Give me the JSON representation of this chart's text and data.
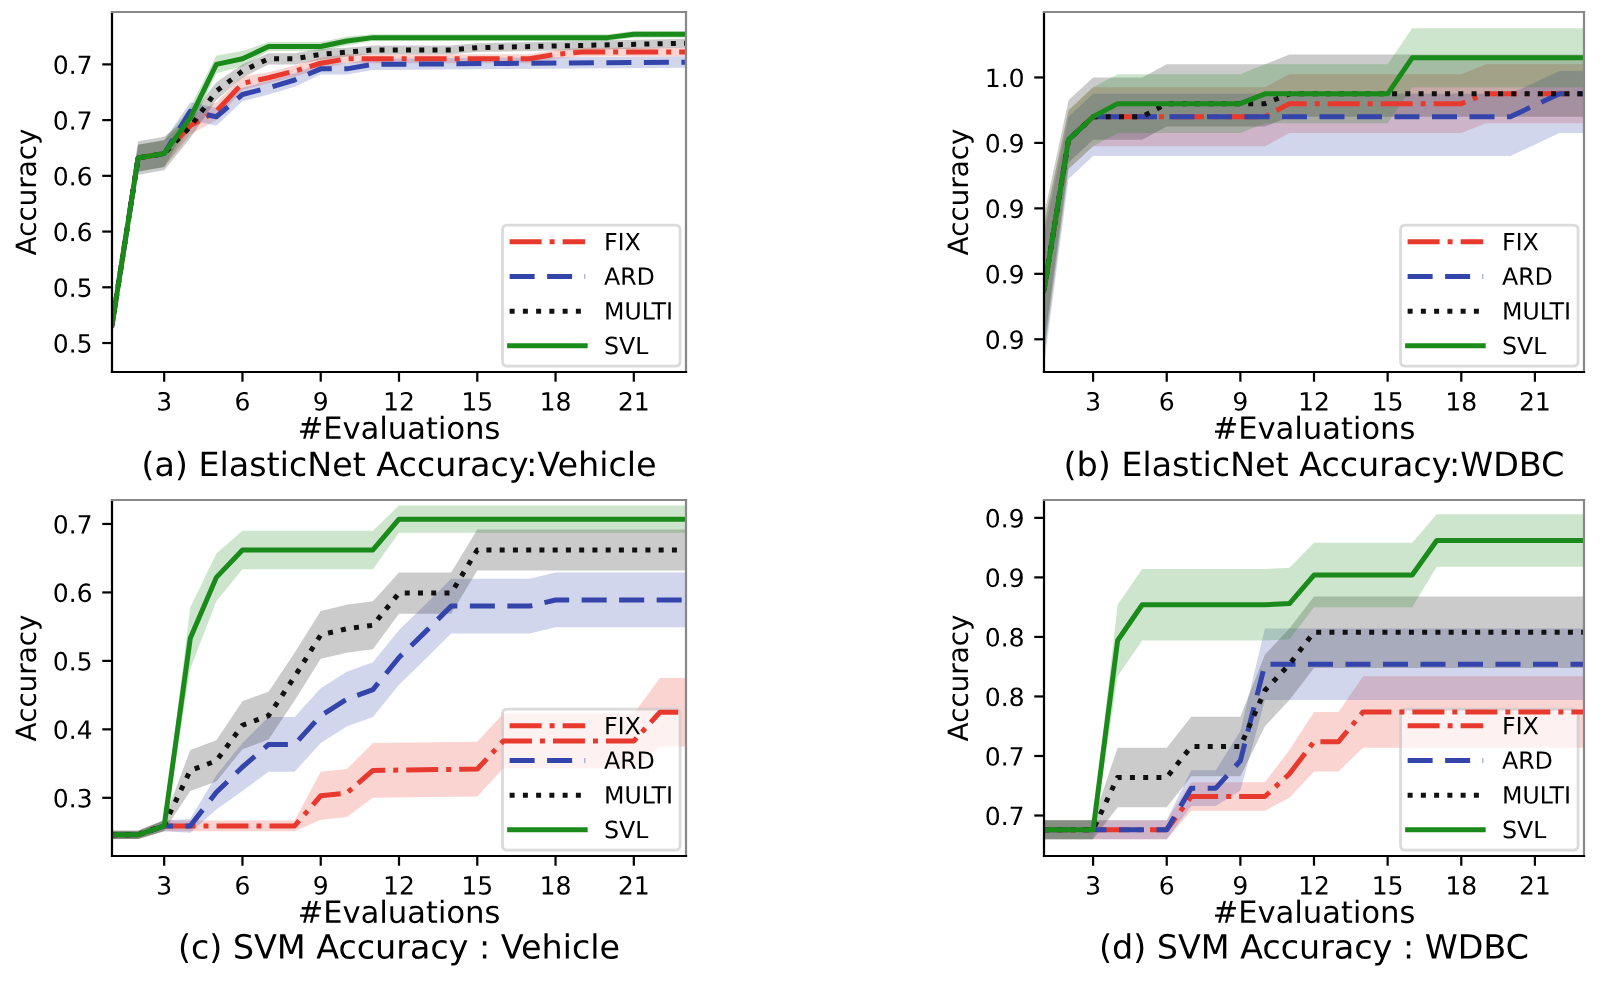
{
  "chart_data": [
    {
      "type": "line",
      "title": "(a) ElasticNet Accuracy:Vehicle",
      "xlabel": "#Evaluations",
      "ylabel": "Accuracy",
      "xlim": [
        1,
        23
      ],
      "xticks": [
        3,
        6,
        9,
        12,
        15,
        18,
        21
      ],
      "ylim": [
        0.424,
        0.747
      ],
      "yticks": [
        {
          "value": 0.45,
          "label": "0.5"
        },
        {
          "value": 0.5,
          "label": "0.5"
        },
        {
          "value": 0.55,
          "label": "0.6"
        },
        {
          "value": 0.6,
          "label": "0.6"
        },
        {
          "value": 0.65,
          "label": "0.7"
        },
        {
          "value": 0.7,
          "label": "0.7"
        }
      ],
      "legend": "lower right",
      "grid": false,
      "series": [
        {
          "name": "FIX",
          "color": "#e8392f",
          "line_style": "dashdot",
          "x": [
            1,
            2,
            3,
            4,
            5,
            6,
            7,
            8,
            9,
            10,
            17,
            18,
            19,
            23
          ],
          "values": [
            0.466,
            0.616,
            0.62,
            0.645,
            0.658,
            0.683,
            0.688,
            0.694,
            0.701,
            0.705,
            0.705,
            0.709,
            0.711,
            0.711
          ],
          "lower": [
            0.456,
            0.604,
            0.608,
            0.637,
            0.65,
            0.677,
            0.683,
            0.689,
            0.696,
            0.701,
            0.701,
            0.705,
            0.707,
            0.707
          ],
          "upper": [
            0.476,
            0.628,
            0.632,
            0.653,
            0.666,
            0.689,
            0.693,
            0.699,
            0.706,
            0.709,
            0.709,
            0.713,
            0.715,
            0.715
          ]
        },
        {
          "name": "ARD",
          "color": "#3344aa",
          "line_style": "dashed",
          "x": [
            1,
            2,
            3,
            4,
            5,
            6,
            7,
            8,
            9,
            10,
            11,
            23
          ],
          "values": [
            0.466,
            0.616,
            0.62,
            0.658,
            0.653,
            0.673,
            0.679,
            0.686,
            0.696,
            0.696,
            0.7,
            0.702
          ],
          "lower": [
            0.456,
            0.604,
            0.608,
            0.65,
            0.645,
            0.667,
            0.673,
            0.68,
            0.691,
            0.691,
            0.695,
            0.697
          ],
          "upper": [
            0.476,
            0.628,
            0.632,
            0.666,
            0.661,
            0.679,
            0.685,
            0.692,
            0.701,
            0.701,
            0.705,
            0.707
          ]
        },
        {
          "name": "MULTI",
          "color": "#111111",
          "line_style": "dotted",
          "x": [
            1,
            2,
            3,
            4,
            5,
            6,
            7,
            8,
            9,
            10,
            11,
            14,
            15,
            23
          ],
          "values": [
            0.466,
            0.616,
            0.62,
            0.644,
            0.676,
            0.694,
            0.705,
            0.705,
            0.709,
            0.711,
            0.713,
            0.713,
            0.715,
            0.719
          ],
          "lower": [
            0.456,
            0.601,
            0.605,
            0.634,
            0.668,
            0.688,
            0.7,
            0.7,
            0.704,
            0.707,
            0.709,
            0.709,
            0.711,
            0.715
          ],
          "upper": [
            0.476,
            0.631,
            0.635,
            0.654,
            0.684,
            0.7,
            0.71,
            0.71,
            0.714,
            0.715,
            0.717,
            0.717,
            0.719,
            0.723
          ]
        },
        {
          "name": "SVL",
          "color": "#1a8a1a",
          "line_style": "solid",
          "x": [
            1,
            2,
            3,
            4,
            5,
            6,
            7,
            9,
            10,
            11,
            20,
            21,
            23
          ],
          "values": [
            0.466,
            0.616,
            0.62,
            0.652,
            0.7,
            0.705,
            0.716,
            0.716,
            0.721,
            0.724,
            0.724,
            0.727,
            0.727
          ],
          "lower": [
            0.456,
            0.604,
            0.608,
            0.642,
            0.692,
            0.698,
            0.712,
            0.712,
            0.717,
            0.721,
            0.721,
            0.724,
            0.724
          ],
          "upper": [
            0.476,
            0.628,
            0.632,
            0.662,
            0.708,
            0.712,
            0.72,
            0.72,
            0.725,
            0.727,
            0.727,
            0.73,
            0.73
          ]
        }
      ]
    },
    {
      "type": "line",
      "title": "(b) ElasticNet Accuracy:WDBC",
      "xlabel": "#Evaluations",
      "ylabel": "Accuracy",
      "xlim": [
        1,
        23
      ],
      "xticks": [
        3,
        6,
        9,
        12,
        15,
        18,
        21
      ],
      "ylim": [
        0.87,
        0.98
      ],
      "yticks": [
        {
          "value": 0.88,
          "label": "0.9"
        },
        {
          "value": 0.9,
          "label": "0.9"
        },
        {
          "value": 0.92,
          "label": "0.9"
        },
        {
          "value": 0.94,
          "label": "0.9"
        },
        {
          "value": 0.96,
          "label": "1.0"
        }
      ],
      "legend": "lower right",
      "grid": false,
      "series": [
        {
          "name": "FIX",
          "color": "#e8392f",
          "line_style": "dashdot",
          "x": [
            1,
            2,
            3,
            10,
            11,
            18,
            19,
            23
          ],
          "values": [
            0.895,
            0.941,
            0.948,
            0.948,
            0.952,
            0.952,
            0.955,
            0.955
          ],
          "lower": [
            0.875,
            0.932,
            0.939,
            0.939,
            0.943,
            0.943,
            0.946,
            0.946
          ],
          "upper": [
            0.915,
            0.95,
            0.957,
            0.957,
            0.961,
            0.961,
            0.964,
            0.964
          ]
        },
        {
          "name": "ARD",
          "color": "#3344aa",
          "line_style": "dashed",
          "x": [
            1,
            2,
            3,
            20,
            22,
            23
          ],
          "values": [
            0.895,
            0.941,
            0.948,
            0.948,
            0.955,
            0.955
          ],
          "lower": [
            0.872,
            0.929,
            0.936,
            0.936,
            0.943,
            0.943
          ],
          "upper": [
            0.912,
            0.948,
            0.955,
            0.955,
            0.962,
            0.962
          ]
        },
        {
          "name": "MULTI",
          "color": "#111111",
          "line_style": "dotted",
          "x": [
            1,
            2,
            3,
            5,
            6,
            10,
            11,
            23
          ],
          "values": [
            0.895,
            0.941,
            0.948,
            0.948,
            0.952,
            0.952,
            0.955,
            0.955
          ],
          "lower": [
            0.878,
            0.934,
            0.941,
            0.941,
            0.945,
            0.945,
            0.948,
            0.948
          ],
          "upper": [
            0.918,
            0.953,
            0.96,
            0.96,
            0.964,
            0.964,
            0.967,
            0.967
          ]
        },
        {
          "name": "SVL",
          "color": "#1a8a1a",
          "line_style": "solid",
          "x": [
            1,
            2,
            3,
            4,
            9,
            10,
            15,
            16,
            23
          ],
          "values": [
            0.895,
            0.941,
            0.948,
            0.952,
            0.952,
            0.955,
            0.955,
            0.966,
            0.966
          ],
          "lower": [
            0.875,
            0.932,
            0.939,
            0.943,
            0.943,
            0.946,
            0.946,
            0.957,
            0.957
          ],
          "upper": [
            0.915,
            0.95,
            0.957,
            0.961,
            0.961,
            0.964,
            0.964,
            0.975,
            0.975
          ]
        }
      ]
    },
    {
      "type": "line",
      "title": "(c) SVM Accuracy : Vehicle",
      "xlabel": "#Evaluations",
      "ylabel": "Accuracy",
      "xlim": [
        1,
        23
      ],
      "xticks": [
        3,
        6,
        9,
        12,
        15,
        18,
        21
      ],
      "ylim": [
        0.215,
        0.735
      ],
      "yticks": [
        0.3,
        0.4,
        0.5,
        0.6,
        0.7
      ],
      "legend": "lower right",
      "grid": false,
      "series": [
        {
          "name": "FIX",
          "color": "#e8392f",
          "line_style": "dashdot",
          "x": [
            1,
            2,
            3,
            8,
            9,
            10,
            11,
            15,
            16,
            21,
            22,
            23
          ],
          "values": [
            0.246,
            0.246,
            0.259,
            0.259,
            0.303,
            0.307,
            0.34,
            0.342,
            0.383,
            0.383,
            0.425,
            0.425
          ],
          "lower": [
            0.24,
            0.24,
            0.251,
            0.251,
            0.268,
            0.272,
            0.3,
            0.302,
            0.343,
            0.343,
            0.375,
            0.375
          ],
          "upper": [
            0.252,
            0.252,
            0.267,
            0.267,
            0.338,
            0.342,
            0.38,
            0.382,
            0.423,
            0.423,
            0.475,
            0.475
          ]
        },
        {
          "name": "ARD",
          "color": "#3344aa",
          "line_style": "dashed",
          "x": [
            1,
            2,
            3,
            4,
            5,
            6,
            7,
            8,
            9,
            10,
            11,
            12,
            13,
            14,
            17,
            18,
            23
          ],
          "values": [
            0.246,
            0.246,
            0.259,
            0.259,
            0.308,
            0.345,
            0.378,
            0.378,
            0.42,
            0.444,
            0.458,
            0.505,
            0.542,
            0.58,
            0.58,
            0.589,
            0.589
          ],
          "lower": [
            0.24,
            0.24,
            0.251,
            0.249,
            0.283,
            0.31,
            0.338,
            0.338,
            0.38,
            0.404,
            0.418,
            0.465,
            0.502,
            0.54,
            0.54,
            0.549,
            0.549
          ],
          "upper": [
            0.252,
            0.252,
            0.267,
            0.269,
            0.333,
            0.38,
            0.418,
            0.418,
            0.46,
            0.484,
            0.498,
            0.545,
            0.582,
            0.62,
            0.62,
            0.629,
            0.629
          ]
        },
        {
          "name": "MULTI",
          "color": "#111111",
          "line_style": "dotted",
          "x": [
            1,
            2,
            3,
            4,
            5,
            6,
            7,
            8,
            9,
            10,
            11,
            12,
            14,
            15,
            23
          ],
          "values": [
            0.246,
            0.246,
            0.26,
            0.34,
            0.354,
            0.406,
            0.42,
            0.477,
            0.538,
            0.547,
            0.552,
            0.599,
            0.599,
            0.662,
            0.662
          ],
          "lower": [
            0.24,
            0.24,
            0.252,
            0.31,
            0.324,
            0.371,
            0.385,
            0.442,
            0.503,
            0.512,
            0.517,
            0.569,
            0.569,
            0.632,
            0.632
          ],
          "upper": [
            0.252,
            0.252,
            0.268,
            0.37,
            0.384,
            0.441,
            0.455,
            0.512,
            0.573,
            0.582,
            0.587,
            0.629,
            0.629,
            0.692,
            0.692
          ]
        },
        {
          "name": "SVL",
          "color": "#1a8a1a",
          "line_style": "solid",
          "x": [
            1,
            2,
            3,
            4,
            5,
            6,
            11,
            12,
            23
          ],
          "values": [
            0.246,
            0.246,
            0.259,
            0.533,
            0.622,
            0.662,
            0.662,
            0.707,
            0.707
          ],
          "lower": [
            0.24,
            0.24,
            0.251,
            0.488,
            0.587,
            0.634,
            0.634,
            0.687,
            0.687
          ],
          "upper": [
            0.252,
            0.252,
            0.267,
            0.578,
            0.657,
            0.69,
            0.69,
            0.727,
            0.727
          ]
        }
      ]
    },
    {
      "type": "line",
      "title": "(d) SVM Accuracy : WDBC",
      "xlabel": "#Evaluations",
      "ylabel": "Accuracy",
      "xlim": [
        1,
        23
      ],
      "xticks": [
        3,
        6,
        9,
        12,
        15,
        18,
        21
      ],
      "ylim": [
        0.616,
        0.915
      ],
      "yticks": [
        {
          "value": 0.65,
          "label": "0.7"
        },
        {
          "value": 0.7,
          "label": "0.7"
        },
        {
          "value": 0.75,
          "label": "0.8"
        },
        {
          "value": 0.8,
          "label": "0.8"
        },
        {
          "value": 0.85,
          "label": "0.9"
        },
        {
          "value": 0.9,
          "label": "0.9"
        }
      ],
      "legend": "lower right",
      "grid": false,
      "series": [
        {
          "name": "FIX",
          "color": "#e8392f",
          "line_style": "dashdot",
          "x": [
            1,
            6,
            7,
            10,
            11,
            12,
            13,
            14,
            23
          ],
          "values": [
            0.638,
            0.638,
            0.666,
            0.666,
            0.685,
            0.712,
            0.712,
            0.737,
            0.737
          ],
          "lower": [
            0.63,
            0.63,
            0.654,
            0.654,
            0.665,
            0.687,
            0.687,
            0.707,
            0.707
          ],
          "upper": [
            0.646,
            0.646,
            0.678,
            0.678,
            0.705,
            0.737,
            0.737,
            0.767,
            0.767
          ]
        },
        {
          "name": "ARD",
          "color": "#3344aa",
          "line_style": "dashed",
          "x": [
            1,
            6,
            7,
            8,
            9,
            10,
            23
          ],
          "values": [
            0.638,
            0.638,
            0.673,
            0.673,
            0.696,
            0.777,
            0.777
          ],
          "lower": [
            0.63,
            0.63,
            0.658,
            0.658,
            0.671,
            0.747,
            0.747
          ],
          "upper": [
            0.646,
            0.646,
            0.688,
            0.688,
            0.721,
            0.807,
            0.807
          ]
        },
        {
          "name": "MULTI",
          "color": "#111111",
          "line_style": "dotted",
          "x": [
            1,
            3,
            4,
            6,
            7,
            9,
            10,
            11,
            12,
            23
          ],
          "values": [
            0.638,
            0.638,
            0.682,
            0.682,
            0.708,
            0.708,
            0.755,
            0.777,
            0.804,
            0.804
          ],
          "lower": [
            0.63,
            0.63,
            0.657,
            0.657,
            0.683,
            0.683,
            0.725,
            0.747,
            0.774,
            0.774
          ],
          "upper": [
            0.646,
            0.646,
            0.707,
            0.707,
            0.733,
            0.733,
            0.785,
            0.807,
            0.834,
            0.834
          ]
        },
        {
          "name": "SVL",
          "color": "#1a8a1a",
          "line_style": "solid",
          "x": [
            1,
            3,
            4,
            5,
            10,
            11,
            12,
            16,
            17,
            23
          ],
          "values": [
            0.638,
            0.638,
            0.797,
            0.827,
            0.827,
            0.828,
            0.852,
            0.852,
            0.881,
            0.881
          ],
          "lower": [
            0.63,
            0.63,
            0.767,
            0.797,
            0.797,
            0.798,
            0.825,
            0.825,
            0.859,
            0.859
          ],
          "upper": [
            0.646,
            0.646,
            0.827,
            0.857,
            0.857,
            0.858,
            0.879,
            0.879,
            0.903,
            0.903
          ]
        }
      ]
    }
  ]
}
